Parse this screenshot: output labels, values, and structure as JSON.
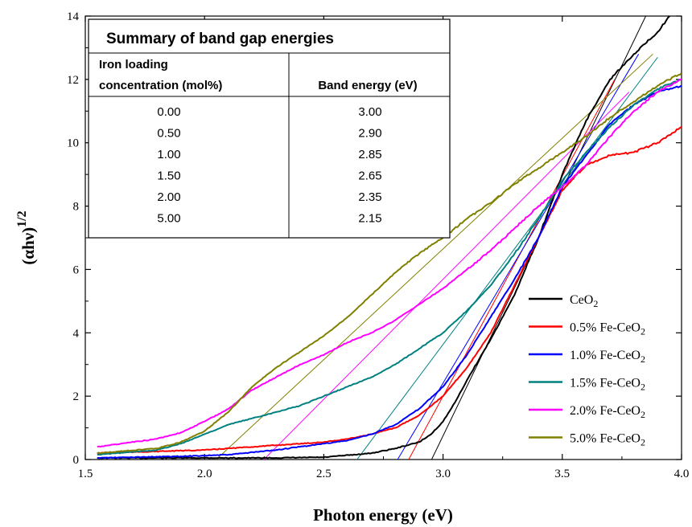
{
  "chart_data": {
    "type": "line",
    "title": "",
    "xlabel": "Photon energy (eV)",
    "ylabel": "(αhν)1/2",
    "ylabel_parts": {
      "main": "(αhν)",
      "sup": "1/2"
    },
    "xlim": [
      1.5,
      4.0
    ],
    "ylim": [
      0,
      14
    ],
    "x_ticks": [
      1.5,
      2.0,
      2.5,
      3.0,
      3.5,
      4.0
    ],
    "x_tick_labels": [
      "1.5",
      "2.0",
      "2.5",
      "3.0",
      "3.5",
      "4.0"
    ],
    "y_ticks": [
      0,
      2,
      4,
      6,
      8,
      10,
      12,
      14
    ],
    "y_tick_labels": [
      "0",
      "2",
      "4",
      "6",
      "8",
      "10",
      "12",
      "14"
    ],
    "grid": false,
    "legend_position": "lower-right",
    "series": [
      {
        "name": "CeO2",
        "legend_main": "CeO",
        "legend_sub": "2",
        "color": "#000000",
        "x": [
          1.55,
          2.0,
          2.3,
          2.5,
          2.7,
          2.8,
          2.9,
          2.95,
          3.0,
          3.05,
          3.1,
          3.2,
          3.3,
          3.4,
          3.5,
          3.6,
          3.7,
          3.8,
          3.9,
          3.95
        ],
        "y": [
          0.05,
          0.05,
          0.05,
          0.07,
          0.2,
          0.35,
          0.55,
          0.8,
          1.2,
          1.8,
          2.5,
          3.8,
          5.2,
          7.0,
          9.0,
          10.7,
          12.0,
          12.8,
          13.5,
          14.0
        ],
        "fit_line": {
          "x": [
            2.92,
            3.85
          ],
          "y": [
            -0.5,
            14
          ]
        }
      },
      {
        "name": "0.5% Fe-CeO2",
        "legend_main": "0.5% Fe-CeO",
        "legend_sub": "2",
        "color": "#ff0000",
        "x": [
          1.55,
          2.0,
          2.3,
          2.5,
          2.6,
          2.7,
          2.8,
          2.9,
          3.0,
          3.1,
          3.2,
          3.3,
          3.4,
          3.5,
          3.6,
          3.7,
          3.8,
          3.9,
          4.0
        ],
        "y": [
          0.2,
          0.3,
          0.45,
          0.55,
          0.65,
          0.8,
          1.0,
          1.4,
          2.0,
          2.9,
          4.0,
          5.5,
          7.0,
          8.5,
          9.3,
          9.6,
          9.7,
          10.0,
          10.5
        ],
        "fit_line": {
          "x": [
            2.82,
            3.72
          ],
          "y": [
            -0.5,
            12
          ]
        }
      },
      {
        "name": "1.0% Fe-CeO2",
        "legend_main": "1.0% Fe-CeO",
        "legend_sub": "2",
        "color": "#0000ff",
        "x": [
          1.55,
          1.9,
          2.1,
          2.3,
          2.5,
          2.6,
          2.7,
          2.8,
          2.9,
          3.0,
          3.1,
          3.2,
          3.3,
          3.4,
          3.5,
          3.6,
          3.7,
          3.8,
          3.9,
          4.0
        ],
        "y": [
          0.05,
          0.1,
          0.15,
          0.3,
          0.5,
          0.6,
          0.8,
          1.1,
          1.6,
          2.3,
          3.3,
          4.5,
          5.7,
          7.0,
          8.6,
          9.6,
          10.6,
          11.2,
          11.6,
          11.8
        ],
        "fit_line": {
          "x": [
            2.77,
            3.82
          ],
          "y": [
            -0.5,
            12.8
          ]
        }
      },
      {
        "name": "1.5% Fe-CeO2",
        "legend_main": "1.5% Fe-CeO",
        "legend_sub": "2",
        "color": "#008080",
        "x": [
          1.55,
          1.8,
          1.9,
          2.0,
          2.1,
          2.2,
          2.3,
          2.4,
          2.5,
          2.6,
          2.7,
          2.8,
          2.9,
          3.0,
          3.1,
          3.2,
          3.3,
          3.4,
          3.5,
          3.6,
          3.7,
          3.8,
          3.9,
          4.0
        ],
        "y": [
          0.15,
          0.3,
          0.5,
          0.8,
          1.1,
          1.3,
          1.5,
          1.7,
          2.0,
          2.3,
          2.6,
          3.0,
          3.5,
          4.0,
          4.7,
          5.5,
          6.5,
          7.6,
          8.8,
          9.7,
          10.5,
          11.2,
          11.7,
          12.0
        ],
        "fit_line": {
          "x": [
            2.55,
            3.9
          ],
          "y": [
            -0.9,
            12.7
          ]
        }
      },
      {
        "name": "2.0% Fe-CeO2",
        "legend_main": "2.0% Fe-CeO",
        "legend_sub": "2",
        "color": "#ff00ff",
        "x": [
          1.55,
          1.8,
          1.9,
          2.0,
          2.1,
          2.2,
          2.3,
          2.4,
          2.5,
          2.6,
          2.7,
          2.8,
          2.9,
          3.0,
          3.1,
          3.2,
          3.3,
          3.4,
          3.5,
          3.6,
          3.7,
          3.8,
          3.9,
          4.0
        ],
        "y": [
          0.4,
          0.65,
          0.85,
          1.2,
          1.6,
          2.2,
          2.6,
          3.0,
          3.3,
          3.7,
          4.0,
          4.4,
          4.9,
          5.4,
          6.0,
          6.6,
          7.3,
          8.0,
          8.6,
          9.3,
          10.2,
          11.0,
          11.6,
          12.0
        ],
        "fit_line": {
          "x": [
            2.13,
            3.78
          ],
          "y": [
            -0.9,
            11.6
          ]
        }
      },
      {
        "name": "5.0% Fe-CeO2",
        "legend_main": "5.0% Fe-CeO",
        "legend_sub": "2",
        "color": "#808000",
        "x": [
          1.55,
          1.8,
          1.9,
          2.0,
          2.1,
          2.2,
          2.3,
          2.4,
          2.5,
          2.6,
          2.7,
          2.8,
          2.9,
          3.0,
          3.1,
          3.2,
          3.3,
          3.4,
          3.5,
          3.6,
          3.7,
          3.8,
          3.9,
          4.0
        ],
        "y": [
          0.2,
          0.35,
          0.55,
          0.9,
          1.5,
          2.3,
          2.9,
          3.4,
          3.9,
          4.5,
          5.2,
          5.9,
          6.5,
          7.0,
          7.6,
          8.1,
          8.7,
          9.2,
          9.7,
          10.2,
          10.8,
          11.3,
          11.8,
          12.2
        ],
        "fit_line": {
          "x": [
            1.92,
            3.88
          ],
          "y": [
            -0.9,
            12.8
          ]
        }
      }
    ]
  },
  "summary_table": {
    "title": "Summary of band gap energies",
    "col1_header_line1": "Iron loading",
    "col1_header_line2": "concentration (mol%)",
    "col2_header": "Band energy (eV)",
    "rows": [
      {
        "loading": "0.00",
        "band": "3.00"
      },
      {
        "loading": "0.50",
        "band": "2.90"
      },
      {
        "loading": "1.00",
        "band": "2.85"
      },
      {
        "loading": "1.50",
        "band": "2.65"
      },
      {
        "loading": "2.00",
        "band": "2.35"
      },
      {
        "loading": "5.00",
        "band": "2.15"
      }
    ]
  }
}
